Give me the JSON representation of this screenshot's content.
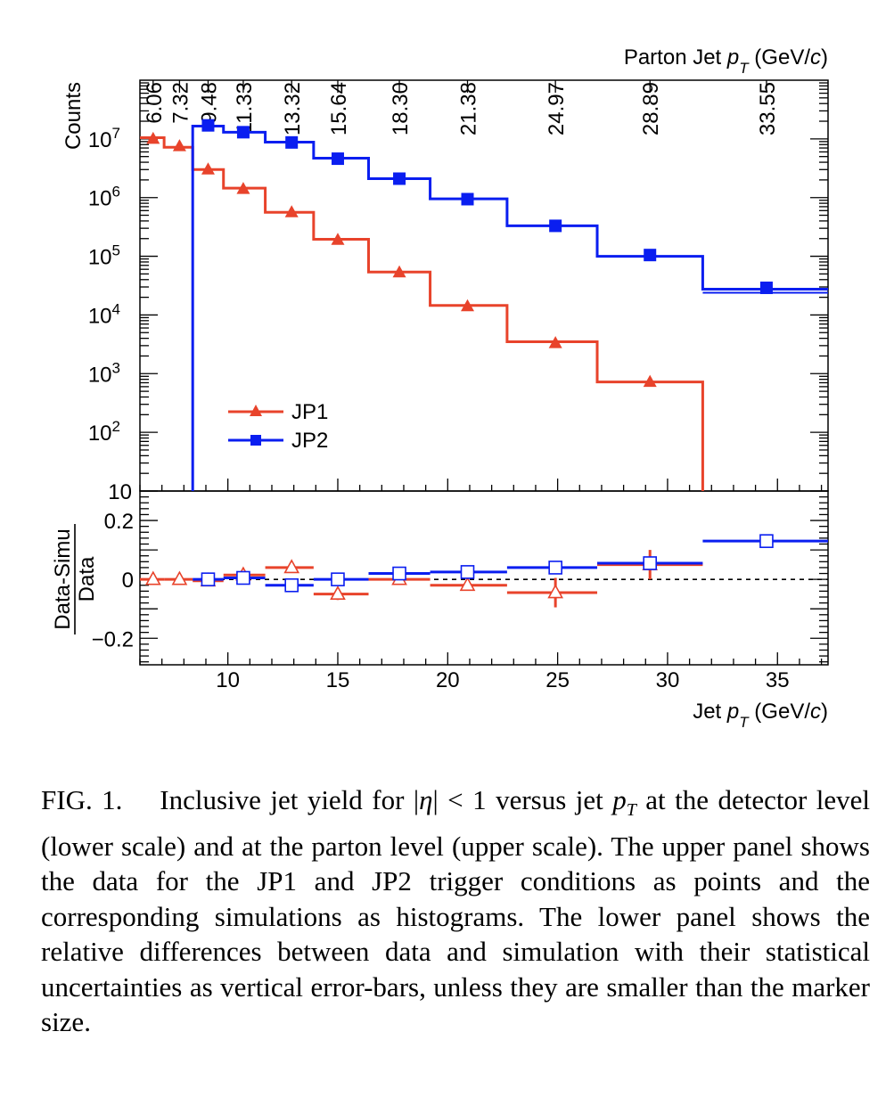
{
  "chart_data": [
    {
      "panel": "upper",
      "type": "line",
      "ylabel": "Counts",
      "yscale": "log",
      "ylim": [
        10,
        100000000
      ],
      "xlim": [
        6,
        37.3
      ],
      "top_axis_title": "Parton Jet p_T (GeV/c)",
      "top_axis_ticks": [
        {
          "x": 6.6,
          "label": "6.06"
        },
        {
          "x": 7.8,
          "label": "7.32"
        },
        {
          "x": 9.1,
          "label": "9.48"
        },
        {
          "x": 10.7,
          "label": "11.33"
        },
        {
          "x": 12.9,
          "label": "13.32"
        },
        {
          "x": 15.0,
          "label": "15.64"
        },
        {
          "x": 17.8,
          "label": "18.30"
        },
        {
          "x": 20.9,
          "label": "21.38"
        },
        {
          "x": 24.9,
          "label": "24.97"
        },
        {
          "x": 29.2,
          "label": "28.89"
        },
        {
          "x": 34.5,
          "label": "33.55"
        }
      ],
      "y_tick_labels": [
        {
          "value": 10,
          "label": "10"
        },
        {
          "value": 100,
          "label": "10",
          "exp": "2"
        },
        {
          "value": 1000,
          "label": "10",
          "exp": "3"
        },
        {
          "value": 10000,
          "label": "10",
          "exp": "4"
        },
        {
          "value": 100000,
          "label": "10",
          "exp": "5"
        },
        {
          "value": 1000000,
          "label": "10",
          "exp": "6"
        },
        {
          "value": 10000000,
          "label": "10",
          "exp": "7"
        }
      ],
      "legend": {
        "position": "center-left",
        "entries": [
          "JP1",
          "JP2"
        ]
      },
      "bin_edges": [
        6.0,
        7.1,
        8.4,
        9.8,
        11.7,
        13.9,
        16.4,
        19.2,
        22.7,
        26.8,
        31.6,
        37.3
      ],
      "series": [
        {
          "name": "JP1",
          "color": "#e8432b",
          "marker": "triangle",
          "hist_edges": [
            6.0,
            7.1,
            8.4,
            9.8,
            11.7,
            13.9,
            16.4,
            19.2,
            22.7,
            26.8,
            31.6
          ],
          "hist_values": [
            10500000,
            7200000,
            3000000,
            1450000,
            560000,
            195000,
            54000,
            14500,
            3500,
            720
          ],
          "points_x": [
            6.6,
            7.8,
            9.1,
            10.7,
            12.9,
            15.0,
            17.8,
            20.9,
            24.9,
            29.2
          ],
          "points_y": [
            10000000,
            7500000,
            3000000,
            1400000,
            560000,
            190000,
            53000,
            14000,
            3300,
            720
          ]
        },
        {
          "name": "JP2",
          "color": "#0a1ef0",
          "marker": "square",
          "hist_edges": [
            8.4,
            9.8,
            11.7,
            13.9,
            16.4,
            19.2,
            22.7,
            26.8,
            31.6,
            37.3
          ],
          "hist_values": [
            16500000,
            13000000,
            8800000,
            4700000,
            2100000,
            950000,
            330000,
            100000,
            27500
          ],
          "points_x": [
            9.1,
            10.7,
            12.9,
            15.0,
            17.8,
            20.9,
            24.9,
            29.2,
            34.5
          ],
          "points_y": [
            17000000,
            13000000,
            8700000,
            4600000,
            2100000,
            940000,
            330000,
            105000,
            29000
          ]
        }
      ]
    },
    {
      "panel": "lower",
      "type": "scatter",
      "ylabel_numerator": "Data-Simu",
      "ylabel_denominator": "Data",
      "ylim": [
        -0.29,
        0.3
      ],
      "xlim": [
        6,
        37.3
      ],
      "xlabel": "Jet p_T (GeV/c)",
      "x_ticks": [
        10,
        15,
        20,
        25,
        30,
        35
      ],
      "y_ticks": [
        {
          "value": 0.2,
          "label": "0.2"
        },
        {
          "value": 0,
          "label": "0"
        },
        {
          "value": -0.2,
          "label": "−0.2"
        }
      ],
      "reference_line": 0,
      "series": [
        {
          "name": "JP1",
          "color": "#e8432b",
          "marker": "triangle-open",
          "points": [
            {
              "x": 6.6,
              "y": 0.0,
              "xlo": 6.0,
              "xhi": 7.1,
              "err": 0.0
            },
            {
              "x": 7.8,
              "y": 0.0,
              "xlo": 7.1,
              "xhi": 8.4,
              "err": 0.0
            },
            {
              "x": 9.1,
              "y": -0.005,
              "xlo": 8.4,
              "xhi": 9.8,
              "err": 0.0
            },
            {
              "x": 10.7,
              "y": 0.015,
              "xlo": 9.8,
              "xhi": 11.7,
              "err": 0.0
            },
            {
              "x": 12.9,
              "y": 0.04,
              "xlo": 11.7,
              "xhi": 13.9,
              "err": 0.0
            },
            {
              "x": 15.0,
              "y": -0.05,
              "xlo": 13.9,
              "xhi": 16.4,
              "err": 0.02
            },
            {
              "x": 17.8,
              "y": 0.0,
              "xlo": 16.4,
              "xhi": 19.2,
              "err": 0.0
            },
            {
              "x": 20.9,
              "y": -0.02,
              "xlo": 19.2,
              "xhi": 22.7,
              "err": 0.01
            },
            {
              "x": 24.9,
              "y": -0.045,
              "xlo": 22.7,
              "xhi": 26.8,
              "err": 0.05
            },
            {
              "x": 29.2,
              "y": 0.05,
              "xlo": 26.8,
              "xhi": 31.6,
              "err": 0.05
            }
          ]
        },
        {
          "name": "JP2",
          "color": "#0a1ef0",
          "marker": "square-open",
          "points": [
            {
              "x": 9.1,
              "y": 0.0,
              "xlo": 8.4,
              "xhi": 9.8,
              "err": 0.0
            },
            {
              "x": 10.7,
              "y": 0.005,
              "xlo": 9.8,
              "xhi": 11.7,
              "err": 0.0
            },
            {
              "x": 12.9,
              "y": -0.02,
              "xlo": 11.7,
              "xhi": 13.9,
              "err": 0.0
            },
            {
              "x": 15.0,
              "y": 0.0,
              "xlo": 13.9,
              "xhi": 16.4,
              "err": 0.0
            },
            {
              "x": 17.8,
              "y": 0.02,
              "xlo": 16.4,
              "xhi": 19.2,
              "err": 0.0
            },
            {
              "x": 20.9,
              "y": 0.025,
              "xlo": 19.2,
              "xhi": 22.7,
              "err": 0.0
            },
            {
              "x": 24.9,
              "y": 0.04,
              "xlo": 22.7,
              "xhi": 26.8,
              "err": 0.0
            },
            {
              "x": 29.2,
              "y": 0.055,
              "xlo": 26.8,
              "xhi": 31.6,
              "err": 0.0
            },
            {
              "x": 34.5,
              "y": 0.13,
              "xlo": 31.6,
              "xhi": 37.3,
              "err": 0.0
            }
          ]
        }
      ]
    }
  ],
  "labels": {
    "counts": "Counts",
    "parton_axis": {
      "pre": "Parton Jet ",
      "p": "p",
      "sub": "T",
      "post": " (GeV/",
      "c": "c",
      "close": ")"
    },
    "jet_axis": {
      "pre": "Jet ",
      "p": "p",
      "sub": "T",
      "post": " (GeV/",
      "c": "c",
      "close": ")"
    },
    "ratio_num": "Data-Simu",
    "ratio_den": "Data",
    "legend_jp1": "JP1",
    "legend_jp2": "JP2"
  },
  "caption": {
    "label": "FIG. 1.",
    "text_1": "Inclusive jet yield for |",
    "eta": "η",
    "text_2": "| < 1 versus jet ",
    "pt_p": "p",
    "pt_sub": "T",
    "text_3": " at the detector level (lower scale) and at the parton level (upper scale). The upper panel shows the data for the JP1 and JP2 trigger conditions as points and the corresponding simulations as histograms. The lower panel shows the relative differences between data and simulation with their statistical uncertainties as vertical error-bars, unless they are smaller than the marker size."
  }
}
